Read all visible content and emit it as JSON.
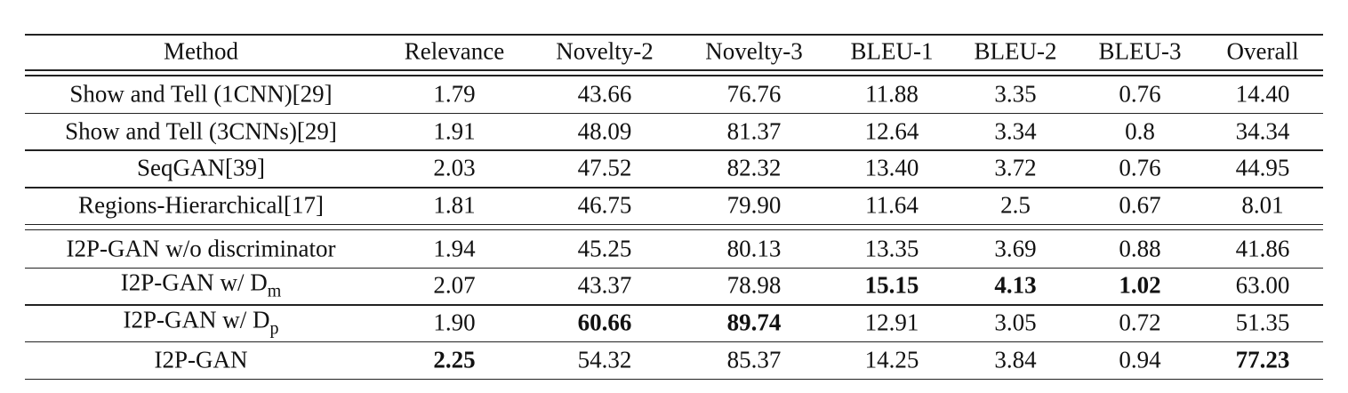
{
  "table": {
    "columns": [
      "Method",
      "Relevance",
      "Novelty-2",
      "Novelty-3",
      "BLEU-1",
      "BLEU-2",
      "BLEU-3",
      "Overall"
    ],
    "groups": [
      {
        "rows": [
          {
            "method": "Show and Tell (1CNN)[29]",
            "values": [
              "1.79",
              "43.66",
              "76.76",
              "11.88",
              "3.35",
              "0.76",
              "14.40"
            ],
            "bold": []
          },
          {
            "method": "Show and Tell (3CNNs)[29]",
            "values": [
              "1.91",
              "48.09",
              "81.37",
              "12.64",
              "3.34",
              "0.8",
              "34.34"
            ],
            "bold": []
          },
          {
            "method": "SeqGAN[39]",
            "values": [
              "2.03",
              "47.52",
              "82.32",
              "13.40",
              "3.72",
              "0.76",
              "44.95"
            ],
            "bold": []
          },
          {
            "method": "Regions-Hierarchical[17]",
            "values": [
              "1.81",
              "46.75",
              "79.90",
              "11.64",
              "2.5",
              "0.67",
              "8.01"
            ],
            "bold": []
          }
        ]
      },
      {
        "rows": [
          {
            "method": "I2P-GAN w/o discriminator",
            "values": [
              "1.94",
              "45.25",
              "80.13",
              "13.35",
              "3.69",
              "0.88",
              "41.86"
            ],
            "bold": []
          },
          {
            "method": "I2P-GAN w/ D",
            "method_sub": "m",
            "values": [
              "2.07",
              "43.37",
              "78.98",
              "15.15",
              "4.13",
              "1.02",
              "63.00"
            ],
            "bold": [
              3,
              4,
              5
            ]
          },
          {
            "method": "I2P-GAN w/ D",
            "method_sub": "p",
            "values": [
              "1.90",
              "60.66",
              "89.74",
              "12.91",
              "3.05",
              "0.72",
              "51.35"
            ],
            "bold": [
              1,
              2
            ]
          },
          {
            "method": "I2P-GAN",
            "values": [
              "2.25",
              "54.32",
              "85.37",
              "14.25",
              "3.84",
              "0.94",
              "77.23"
            ],
            "bold": [
              0,
              6
            ]
          }
        ]
      }
    ]
  }
}
